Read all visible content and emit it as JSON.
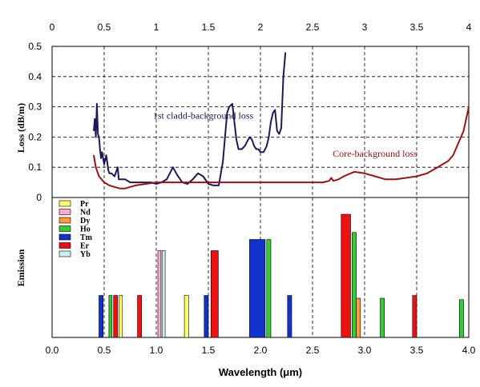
{
  "chart_data": [
    {
      "type": "line",
      "panel": "top",
      "ylabel": "Loss (dB/m)",
      "xlim": [
        0,
        4
      ],
      "ylim": [
        0,
        0.5
      ],
      "x_ticks": [
        "0",
        "0.5",
        "1",
        "1.5",
        "2",
        "2.5",
        "3",
        "3.5",
        "4"
      ],
      "y_ticks": [
        "0",
        "0.1",
        "0.2",
        "0.3",
        "0.4",
        "0.5"
      ],
      "grid": true,
      "series": [
        {
          "name": "1st cladd-background loss",
          "color": "#1a1a5a",
          "x": [
            0.4,
            0.41,
            0.42,
            0.43,
            0.44,
            0.45,
            0.46,
            0.47,
            0.48,
            0.5,
            0.52,
            0.54,
            0.55,
            0.57,
            0.6,
            0.63,
            0.64,
            0.66,
            0.7,
            0.75,
            0.8,
            0.85,
            0.9,
            0.95,
            1.0,
            1.05,
            1.1,
            1.13,
            1.16,
            1.2,
            1.25,
            1.3,
            1.35,
            1.4,
            1.45,
            1.5,
            1.55,
            1.6,
            1.62,
            1.64,
            1.66,
            1.68,
            1.7,
            1.73,
            1.75,
            1.77,
            1.79,
            1.82,
            1.85,
            1.88,
            1.9,
            1.92,
            1.94,
            1.96,
            1.98,
            2.0,
            2.03,
            2.06,
            2.08,
            2.1,
            2.12,
            2.14,
            2.16,
            2.18,
            2.2,
            2.22,
            2.24
          ],
          "y": [
            0.22,
            0.26,
            0.2,
            0.31,
            0.21,
            0.2,
            0.16,
            0.13,
            0.15,
            0.11,
            0.14,
            0.09,
            0.08,
            0.08,
            0.07,
            0.1,
            0.06,
            0.06,
            0.06,
            0.05,
            0.05,
            0.05,
            0.05,
            0.05,
            0.045,
            0.05,
            0.06,
            0.08,
            0.1,
            0.075,
            0.05,
            0.045,
            0.06,
            0.08,
            0.07,
            0.045,
            0.04,
            0.04,
            0.08,
            0.12,
            0.2,
            0.28,
            0.3,
            0.31,
            0.25,
            0.19,
            0.16,
            0.16,
            0.17,
            0.19,
            0.2,
            0.19,
            0.17,
            0.16,
            0.16,
            0.15,
            0.15,
            0.17,
            0.2,
            0.25,
            0.28,
            0.29,
            0.22,
            0.21,
            0.23,
            0.4,
            0.48
          ]
        },
        {
          "name": "Core-background loss",
          "color": "#a01010",
          "x": [
            0.4,
            0.42,
            0.45,
            0.5,
            0.55,
            0.6,
            0.65,
            0.7,
            0.75,
            0.8,
            0.9,
            1.0,
            1.1,
            1.2,
            1.3,
            1.4,
            1.5,
            1.6,
            1.8,
            2.0,
            2.2,
            2.4,
            2.6,
            2.66,
            2.68,
            2.7,
            2.75,
            2.8,
            2.9,
            3.0,
            3.1,
            3.2,
            3.3,
            3.4,
            3.5,
            3.6,
            3.7,
            3.75,
            3.8,
            3.85,
            3.9,
            3.95,
            4.0
          ],
          "y": [
            0.14,
            0.1,
            0.07,
            0.05,
            0.04,
            0.035,
            0.03,
            0.03,
            0.035,
            0.04,
            0.045,
            0.05,
            0.05,
            0.05,
            0.05,
            0.05,
            0.05,
            0.05,
            0.05,
            0.05,
            0.05,
            0.05,
            0.05,
            0.055,
            0.065,
            0.055,
            0.06,
            0.07,
            0.085,
            0.08,
            0.07,
            0.06,
            0.06,
            0.065,
            0.07,
            0.08,
            0.1,
            0.11,
            0.12,
            0.14,
            0.18,
            0.22,
            0.3
          ]
        }
      ],
      "annotations": [
        {
          "text": "1st cladd-background loss",
          "x": 1.45,
          "y": 0.26,
          "color": "#1a1a5a"
        },
        {
          "text": "Core-background loss",
          "x": 3.1,
          "y": 0.135,
          "color": "#a01010"
        }
      ]
    },
    {
      "type": "bar",
      "panel": "bottom",
      "xlabel": "Wavelength (μm)",
      "ylabel": "Emission",
      "xlim": [
        0,
        4
      ],
      "ylim": [
        0,
        1
      ],
      "x_ticks": [
        "0.0",
        "0.5",
        "1.0",
        "1.5",
        "2.0",
        "2.5",
        "3.0",
        "3.5",
        "4.0"
      ],
      "grid": true,
      "legend": {
        "placement": "top-left",
        "entries": [
          {
            "name": "Pr",
            "color": "#ffff66"
          },
          {
            "name": "Nd",
            "color": "#ffaacc"
          },
          {
            "name": "Dy",
            "color": "#ff9933"
          },
          {
            "name": "Ho",
            "color": "#33cc33"
          },
          {
            "name": "Tm",
            "color": "#1133cc"
          },
          {
            "name": "Er",
            "color": "#ee1111"
          },
          {
            "name": "Yb",
            "color": "#ccf0f0"
          }
        ]
      },
      "bars": [
        {
          "ion": "Tm",
          "x": 0.47,
          "height": 0.3,
          "width": 0.04
        },
        {
          "ion": "Ho",
          "x": 0.56,
          "height": 0.3,
          "width": 0.03
        },
        {
          "ion": "Er",
          "x": 0.61,
          "height": 0.3,
          "width": 0.04
        },
        {
          "ion": "Pr",
          "x": 0.66,
          "height": 0.3,
          "width": 0.03
        },
        {
          "ion": "Er",
          "x": 0.84,
          "height": 0.3,
          "width": 0.04
        },
        {
          "ion": "Nd",
          "x": 1.03,
          "height": 0.62,
          "width": 0.03
        },
        {
          "ion": "Yb",
          "x": 1.07,
          "height": 0.62,
          "width": 0.03
        },
        {
          "ion": "Pr",
          "x": 1.29,
          "height": 0.3,
          "width": 0.04
        },
        {
          "ion": "Tm",
          "x": 1.48,
          "height": 0.3,
          "width": 0.04
        },
        {
          "ion": "Er",
          "x": 1.56,
          "height": 0.62,
          "width": 0.07
        },
        {
          "ion": "Tm",
          "x": 1.97,
          "height": 0.7,
          "width": 0.15
        },
        {
          "ion": "Ho",
          "x": 2.08,
          "height": 0.7,
          "width": 0.04
        },
        {
          "ion": "Tm",
          "x": 2.28,
          "height": 0.3,
          "width": 0.04
        },
        {
          "ion": "Er",
          "x": 2.82,
          "height": 0.88,
          "width": 0.09
        },
        {
          "ion": "Ho",
          "x": 2.9,
          "height": 0.75,
          "width": 0.04
        },
        {
          "ion": "Dy",
          "x": 2.94,
          "height": 0.28,
          "width": 0.04
        },
        {
          "ion": "Ho",
          "x": 3.17,
          "height": 0.28,
          "width": 0.04
        },
        {
          "ion": "Er",
          "x": 3.48,
          "height": 0.3,
          "width": 0.04
        },
        {
          "ion": "Ho",
          "x": 3.93,
          "height": 0.27,
          "width": 0.04
        }
      ]
    }
  ]
}
